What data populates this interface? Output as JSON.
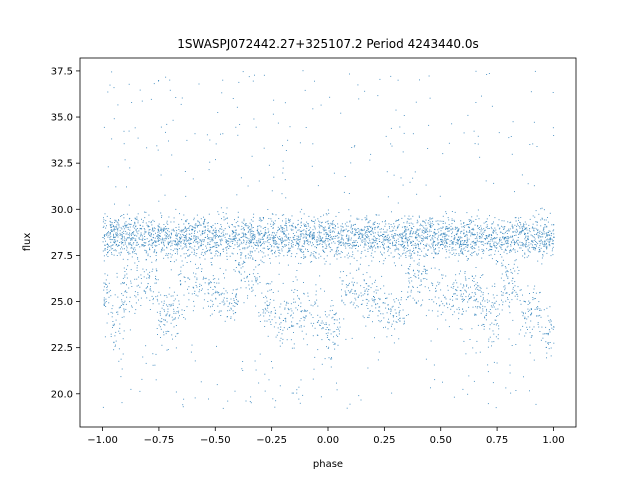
{
  "chart_data": {
    "type": "scatter",
    "title": "1SWASPJ072442.27+325107.2 Period 4243440.0s",
    "xlabel": "phase",
    "ylabel": "flux",
    "xlim": [
      -1.1,
      1.1
    ],
    "ylim": [
      18.2,
      38.2
    ],
    "xticks": [
      -1.0,
      -0.75,
      -0.5,
      -0.25,
      0.0,
      0.25,
      0.5,
      0.75,
      1.0
    ],
    "xtick_labels": [
      "−1.00",
      "−0.75",
      "−0.50",
      "−0.25",
      "0.00",
      "0.25",
      "0.50",
      "0.75",
      "1.00"
    ],
    "yticks": [
      20.0,
      22.5,
      25.0,
      27.5,
      30.0,
      32.5,
      35.0,
      37.5
    ],
    "ytick_labels": [
      "20.0",
      "22.5",
      "25.0",
      "27.5",
      "30.0",
      "32.5",
      "35.0",
      "37.5"
    ],
    "marker_color": "#1f77b4",
    "grid": false,
    "series": [
      {
        "values_summary": "dense phase-folded light curve, phase -1.0 to 1.0",
        "main_band": {
          "y": [
            27.0,
            30.0
          ]
        },
        "secondary_band": {
          "y": [
            23.0,
            26.5
          ]
        },
        "scatter_range": {
          "y": [
            19.2,
            37.6
          ]
        },
        "points": [
          [
            -1.0,
            28.5
          ],
          [
            -0.98,
            25.5
          ],
          [
            -0.96,
            29.3
          ],
          [
            -0.95,
            23.8
          ],
          [
            -0.9,
            25.6
          ],
          [
            -0.85,
            28.8
          ],
          [
            -0.8,
            26.0
          ],
          [
            -0.75,
            28.6
          ],
          [
            -0.72,
            24.3
          ],
          [
            -0.7,
            27.2
          ],
          [
            -0.65,
            28.9
          ],
          [
            -0.6,
            25.8
          ],
          [
            -0.55,
            29.4
          ],
          [
            -0.5,
            28.2
          ],
          [
            -0.45,
            25.2
          ],
          [
            -0.4,
            29.6
          ],
          [
            -0.35,
            26.5
          ],
          [
            -0.3,
            28.4
          ],
          [
            -0.27,
            24.8
          ],
          [
            -0.25,
            27.8
          ],
          [
            -0.2,
            24.0
          ],
          [
            -0.15,
            28.6
          ],
          [
            -0.1,
            24.5
          ],
          [
            -0.05,
            28.1
          ],
          [
            0.0,
            23.5
          ],
          [
            0.05,
            28.7
          ],
          [
            0.1,
            25.6
          ],
          [
            0.15,
            28.9
          ],
          [
            0.2,
            25.3
          ],
          [
            0.25,
            28.4
          ],
          [
            0.3,
            24.4
          ],
          [
            0.35,
            28.2
          ],
          [
            0.4,
            26.3
          ],
          [
            0.45,
            29.5
          ],
          [
            0.5,
            28.3
          ],
          [
            0.55,
            25.3
          ],
          [
            0.6,
            29.3
          ],
          [
            0.65,
            25.5
          ],
          [
            0.7,
            28.6
          ],
          [
            0.72,
            24.4
          ],
          [
            0.75,
            27.2
          ],
          [
            0.8,
            26.0
          ],
          [
            0.85,
            28.8
          ],
          [
            0.9,
            24.6
          ],
          [
            0.95,
            28.7
          ],
          [
            0.98,
            23.5
          ],
          [
            1.0,
            28.5
          ]
        ]
      }
    ]
  }
}
